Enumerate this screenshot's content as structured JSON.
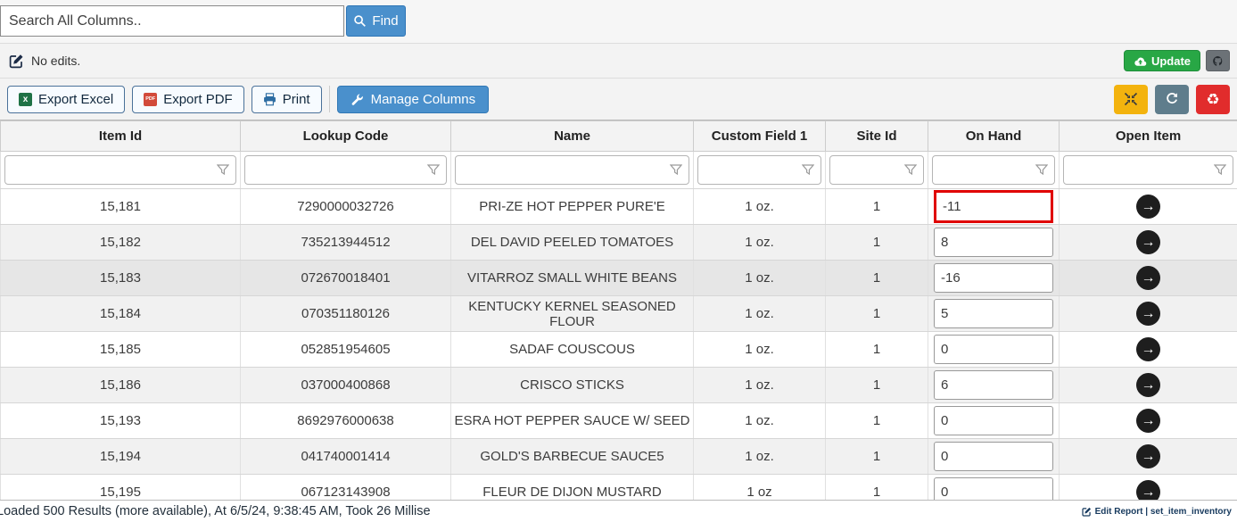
{
  "search": {
    "placeholder": "Search All Columns..",
    "find_label": "Find"
  },
  "edits_bar": {
    "status": "No edits.",
    "update_label": "Update"
  },
  "toolbar": {
    "export_excel": "Export Excel",
    "export_pdf": "Export PDF",
    "print": "Print",
    "manage_columns": "Manage Columns"
  },
  "table": {
    "columns": [
      "Item Id",
      "Lookup Code",
      "Name",
      "Custom Field 1",
      "Site Id",
      "On Hand",
      "Open Item"
    ],
    "rows": [
      {
        "item_id": "15,181",
        "lookup_code": "7290000032726",
        "name": "PRI-ZE HOT PEPPER PURE'E",
        "custom_field_1": "1 oz.",
        "site_id": "1",
        "on_hand": "-11",
        "on_hand_selected": true
      },
      {
        "item_id": "15,182",
        "lookup_code": "735213944512",
        "name": "DEL DAVID PEELED TOMATOES",
        "custom_field_1": "1 oz.",
        "site_id": "1",
        "on_hand": "8"
      },
      {
        "item_id": "15,183",
        "lookup_code": "072670018401",
        "name": "VITARROZ SMALL WHITE BEANS",
        "custom_field_1": "1 oz.",
        "site_id": "1",
        "on_hand": "-16",
        "hovered": true
      },
      {
        "item_id": "15,184",
        "lookup_code": "070351180126",
        "name": "KENTUCKY KERNEL SEASONED FLOUR",
        "custom_field_1": "1 oz.",
        "site_id": "1",
        "on_hand": "5"
      },
      {
        "item_id": "15,185",
        "lookup_code": "052851954605",
        "name": "SADAF COUSCOUS",
        "custom_field_1": "1 oz.",
        "site_id": "1",
        "on_hand": "0"
      },
      {
        "item_id": "15,186",
        "lookup_code": "037000400868",
        "name": "CRISCO STICKS",
        "custom_field_1": "1 oz.",
        "site_id": "1",
        "on_hand": "6"
      },
      {
        "item_id": "15,193",
        "lookup_code": "8692976000638",
        "name": "ESRA HOT PEPPER SAUCE W/ SEED",
        "custom_field_1": "1 oz.",
        "site_id": "1",
        "on_hand": "0"
      },
      {
        "item_id": "15,194",
        "lookup_code": "041740001414",
        "name": "GOLD'S BARBECUE SAUCE5",
        "custom_field_1": "1 oz.",
        "site_id": "1",
        "on_hand": "0"
      },
      {
        "item_id": "15,195",
        "lookup_code": "067123143908",
        "name": "FLEUR DE DIJON MUSTARD",
        "custom_field_1": "1 oz",
        "site_id": "1",
        "on_hand": "0"
      }
    ]
  },
  "status_bar": {
    "left": "Loaded 500 Results (more available), At 6/5/24, 9:38:45 AM, Took 26 Millise",
    "right": "Edit Report | set_item_inventory"
  },
  "colors": {
    "accent_blue": "#4a90cc",
    "success_green": "#28a745",
    "warning_orange": "#f3b30e",
    "slate_gray": "#5f7d8c",
    "danger_red": "#e12c2c",
    "selected_cell_border": "#e00000"
  }
}
